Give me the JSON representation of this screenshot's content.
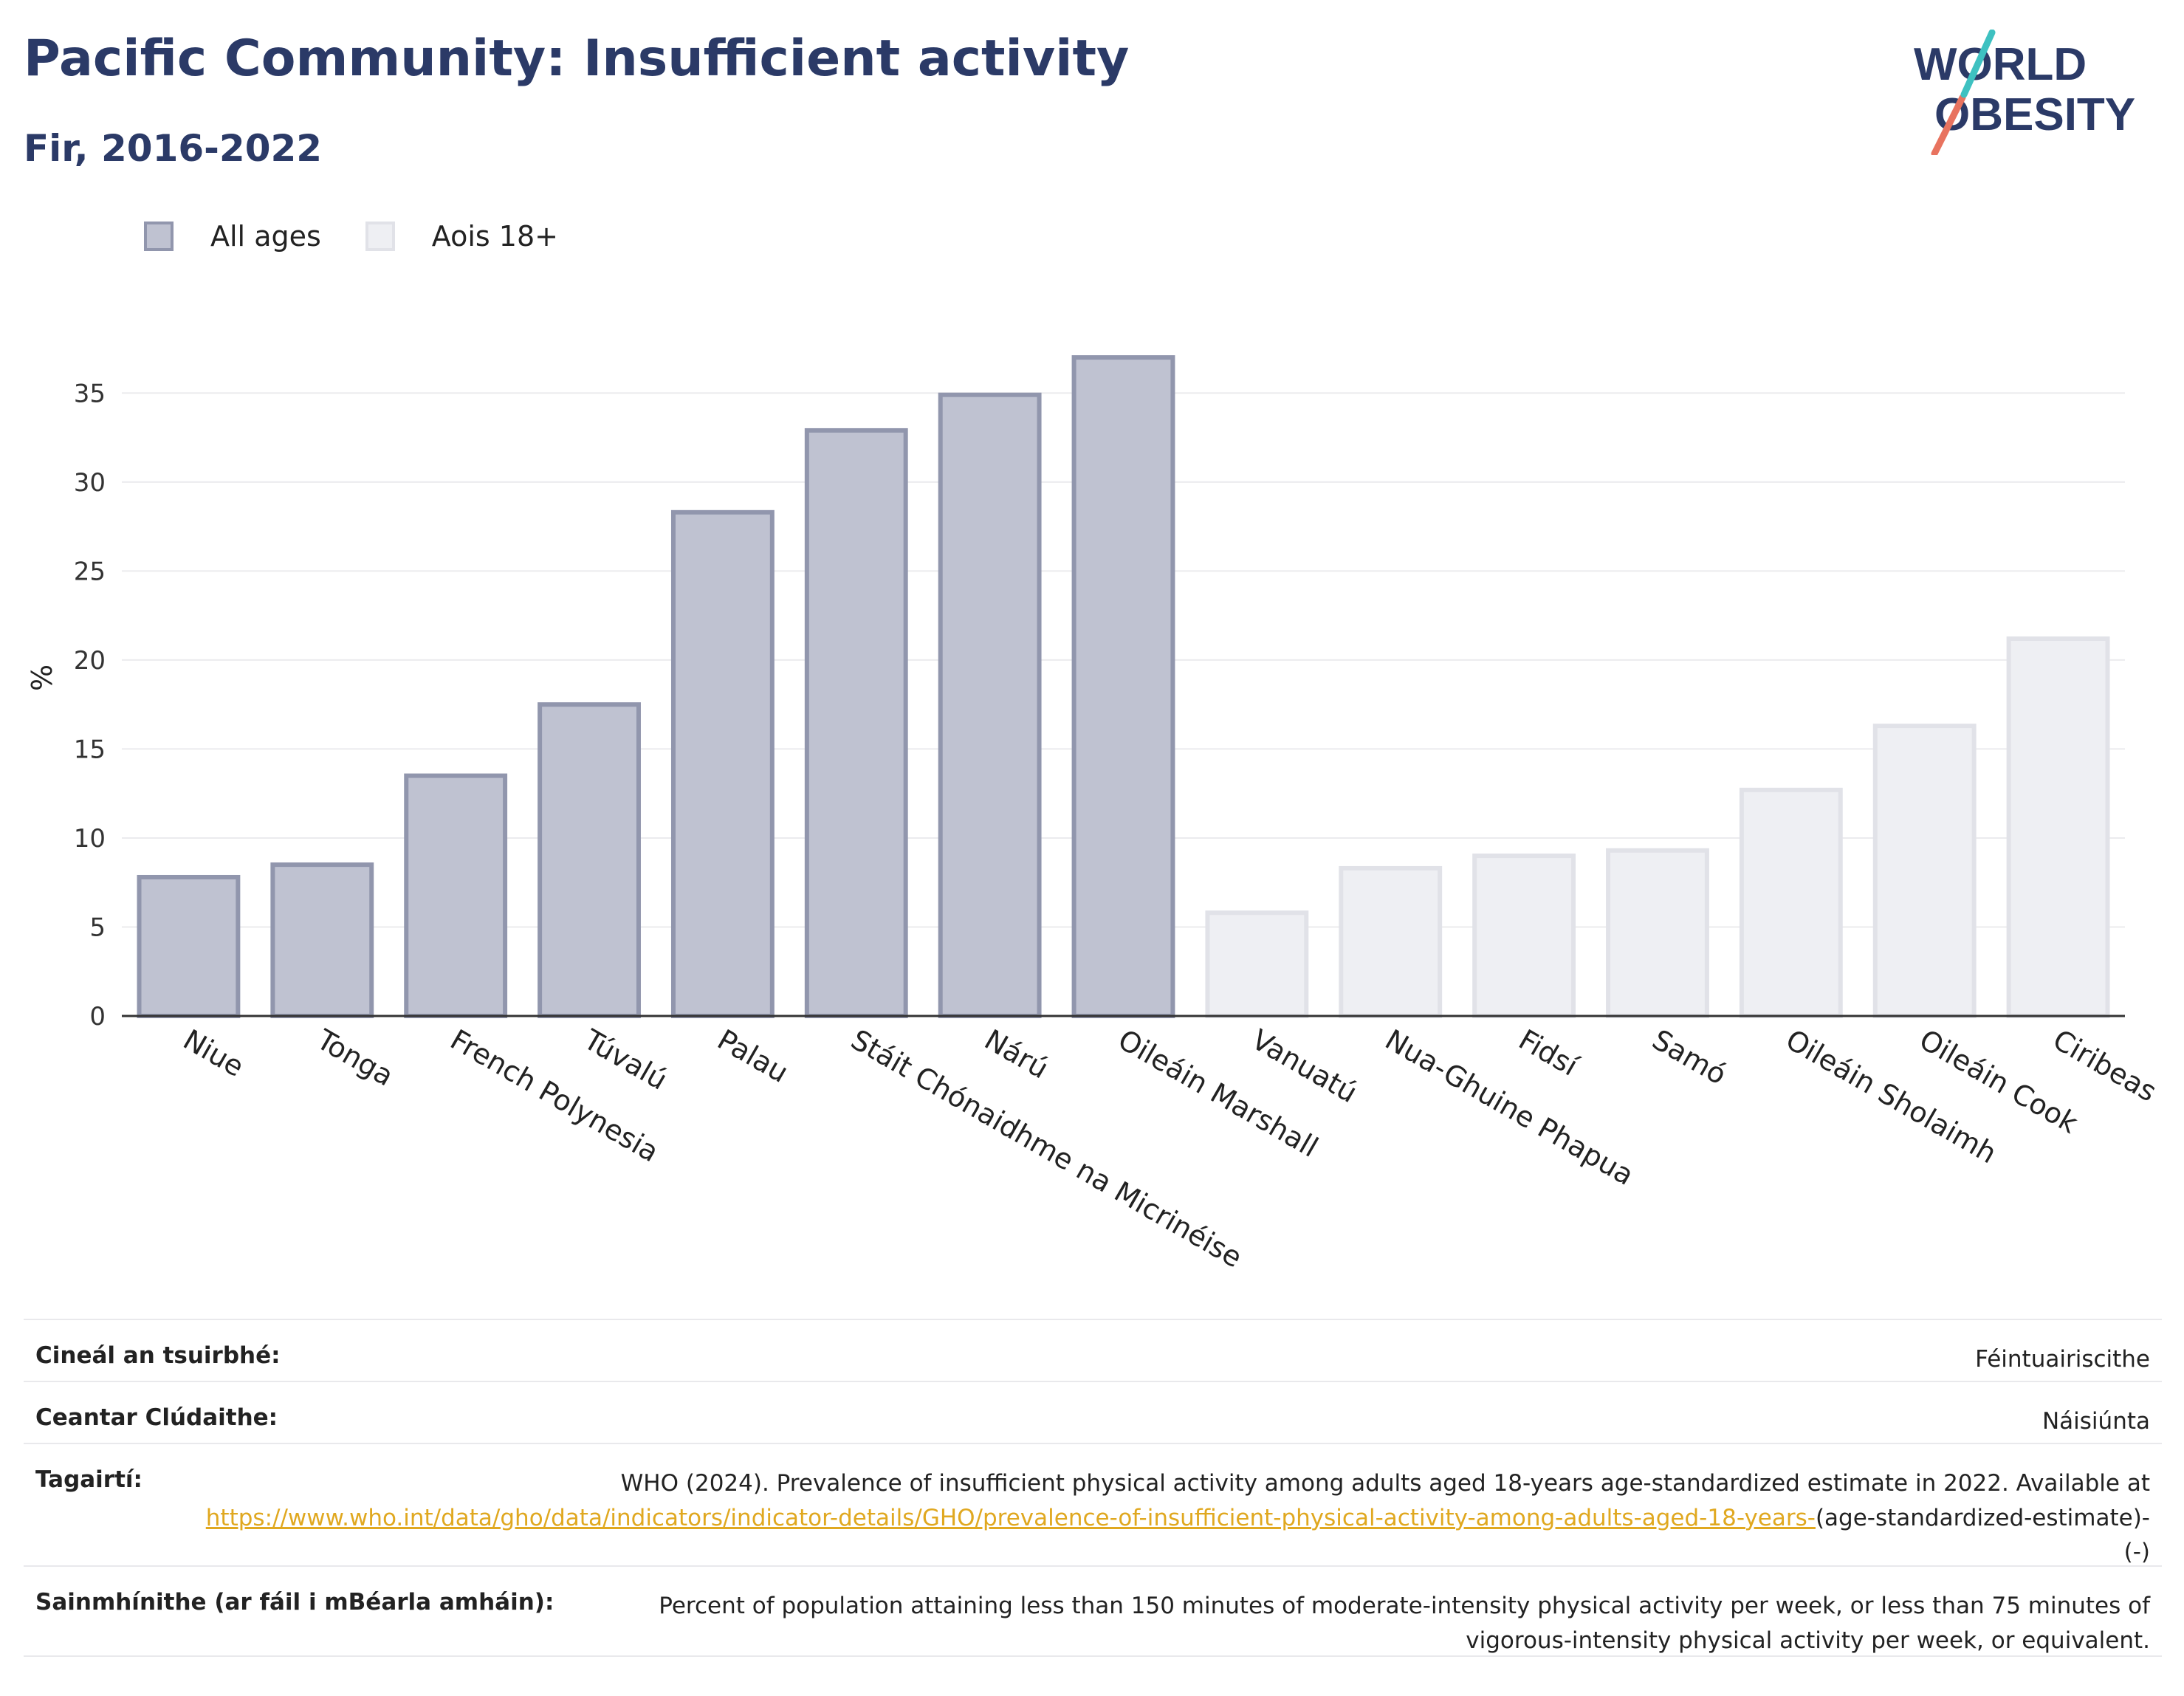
{
  "title": "Pacific Community: Insufficient activity",
  "subtitle": "Fir, 2016-2022",
  "logo": {
    "line1": "WORLD",
    "line2": "OBESITY"
  },
  "legend": [
    {
      "label": "All ages",
      "color": "#bfc2d1"
    },
    {
      "label": "Aois 18+",
      "color": "#eeeff3"
    }
  ],
  "info": {
    "survey_type": {
      "label": "Cineál an tsuirbhé:",
      "value": "Féintuairiscithe"
    },
    "coverage": {
      "label": "Ceantar Clúdaithe:",
      "value": "Náisiúnta"
    },
    "references": {
      "label": "Tagairtí:",
      "text_before": "WHO (2024). Prevalence of insufficient physical activity among adults aged 18-years age-standardized estimate in 2022. Available at ",
      "link": "https://www.who.int/data/gho/data/indicators/indicator-details/GHO/prevalence-of-insufficient-physical-activity-among-adults-aged-18-years-",
      "text_after": "(age-standardized-estimate)-(-)"
    },
    "definitions": {
      "label": "Sainmhínithe (ar fáil i mBéarla amháin):",
      "value": "Percent of population attaining less than 150 minutes of moderate-intensity physical activity per week, or less than 75 minutes of vigorous-intensity physical activity per week, or equivalent."
    }
  },
  "chart_data": {
    "type": "bar",
    "ylabel": "%",
    "xlabel": "",
    "ylim": [
      0,
      38
    ],
    "yticks": [
      0,
      5,
      10,
      15,
      20,
      25,
      30,
      35
    ],
    "grid": true,
    "legend_position": "top-left",
    "categories": [
      "Niue",
      "Tonga",
      "French Polynesia",
      "Túvalú",
      "Palau",
      "Stáit Chónaidhme na Micrinéise",
      "Nárú",
      "Oileáin Marshall",
      "Vanuatú",
      "Nua-Ghuine Phapua",
      "Fidsí",
      "Samó",
      "Oileáin Sholaimh",
      "Oileáin Cook",
      "Ciribeas"
    ],
    "series": [
      {
        "name": "All ages",
        "color": "#bfc2d1",
        "stroke": "#9196ad",
        "values": [
          7.8,
          8.5,
          13.5,
          17.5,
          28.3,
          32.9,
          34.9,
          37.0,
          null,
          null,
          null,
          null,
          null,
          null,
          null
        ]
      },
      {
        "name": "Aois 18+",
        "color": "#eeeff3",
        "stroke": "#e1e2e8",
        "values": [
          null,
          null,
          null,
          null,
          null,
          null,
          null,
          null,
          5.8,
          8.3,
          9.0,
          9.3,
          12.7,
          16.3,
          21.2
        ]
      }
    ]
  }
}
